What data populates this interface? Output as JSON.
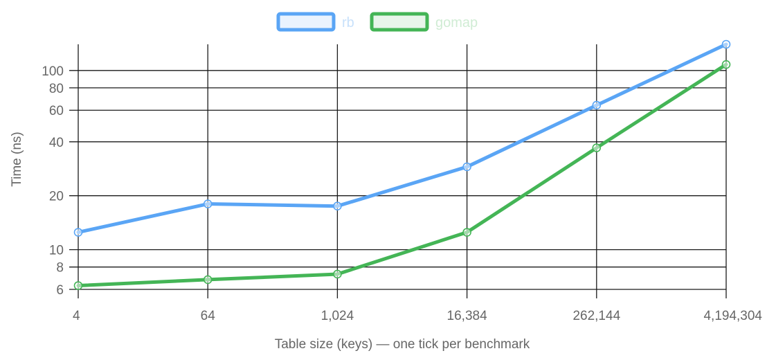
{
  "chart_data": {
    "type": "line",
    "x": [
      4,
      64,
      1024,
      16384,
      262144,
      4194304
    ],
    "categories": [
      "4",
      "64",
      "1,024",
      "16,384",
      "262,144",
      "4,194,304"
    ],
    "series": [
      {
        "name": "rb",
        "values": [
          12.5,
          18,
          17.5,
          29,
          64,
          140
        ],
        "color": "#5AA5F5"
      },
      {
        "name": "gomap",
        "values": [
          6.3,
          6.8,
          7.3,
          12.5,
          37,
          108
        ],
        "color": "#44B556"
      }
    ],
    "x_scale": "log",
    "y_scale": "log",
    "yticks": [
      6,
      8,
      10,
      20,
      40,
      60,
      80,
      100
    ],
    "ytick_labels": [
      "6",
      "8",
      "10",
      "20",
      "40",
      "60",
      "80",
      "100"
    ],
    "ylim": [
      6,
      140
    ],
    "xlabel": "Table size (keys) — one tick per benchmark",
    "ylabel": "Time (ns)",
    "grid": true,
    "legend_position": "top-center"
  }
}
